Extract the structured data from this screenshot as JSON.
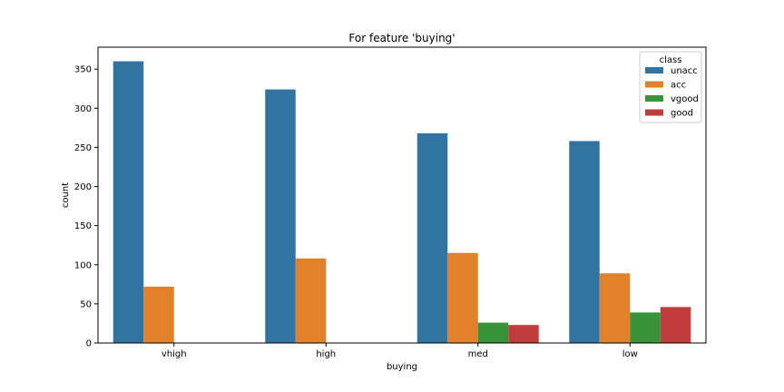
{
  "chart_data": {
    "type": "bar",
    "title": "For feature 'buying'",
    "xlabel": "buying",
    "ylabel": "count",
    "categories": [
      "vhigh",
      "high",
      "med",
      "low"
    ],
    "series": [
      {
        "name": "unacc",
        "values": [
          360,
          324,
          268,
          258
        ]
      },
      {
        "name": "acc",
        "values": [
          72,
          108,
          115,
          89
        ]
      },
      {
        "name": "vgood",
        "values": [
          0,
          0,
          26,
          39
        ]
      },
      {
        "name": "good",
        "values": [
          0,
          0,
          23,
          46
        ]
      }
    ],
    "ylim": [
      0,
      378
    ],
    "yticks": [
      0,
      50,
      100,
      150,
      200,
      250,
      300,
      350
    ],
    "grid": false,
    "legend": {
      "title": "class",
      "position": "top-right"
    },
    "colors": [
      "#3274a1",
      "#e1812c",
      "#3a923a",
      "#c03d3e"
    ]
  }
}
